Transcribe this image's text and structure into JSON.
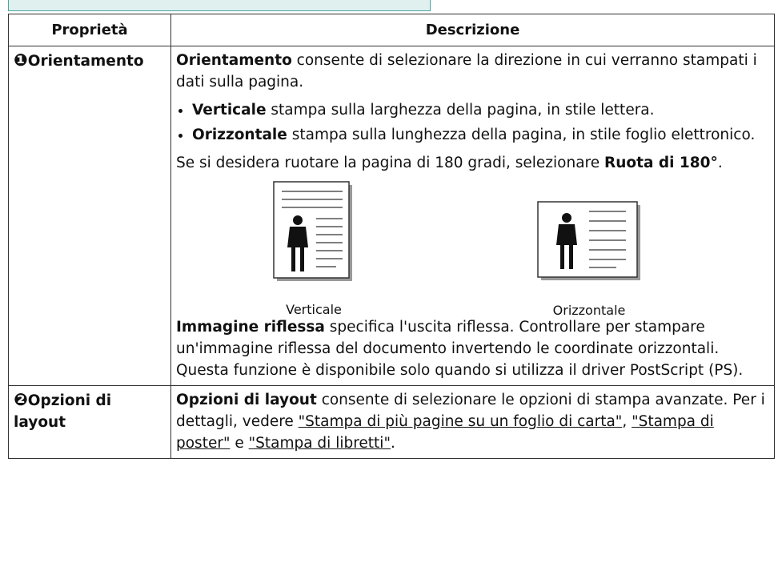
{
  "table": {
    "header": [
      "Proprietà",
      "Descrizione"
    ],
    "rows": [
      {
        "property": {
          "marker": "❶",
          "text": "Orientamento"
        },
        "description": [
          {
            "kind": "paragraph",
            "runs": [
              {
                "text": "Orientamento",
                "style": "bold"
              },
              {
                "text": " consente di selezionare la direzione in cui verranno stampati i dati sulla pagina."
              }
            ]
          },
          {
            "kind": "list",
            "items": [
              [
                {
                  "text": "Verticale",
                  "style": "bold"
                },
                {
                  "text": " stampa sulla larghezza della pagina, in stile lettera."
                }
              ],
              [
                {
                  "text": "Orizzontale",
                  "style": "bold"
                },
                {
                  "text": " stampa sulla lunghezza della pagina, in stile foglio elettronico."
                }
              ]
            ]
          },
          {
            "kind": "paragraph",
            "runs": [
              {
                "text": "Se si desidera ruotare la pagina di 180 gradi, selezionare "
              },
              {
                "text": "Ruota di 180°",
                "style": "bold"
              },
              {
                "text": "."
              }
            ]
          },
          {
            "kind": "figure",
            "captions": [
              "Verticale",
              "Orizzontale"
            ]
          },
          {
            "kind": "paragraph",
            "runs": [
              {
                "text": "Immagine riflessa",
                "style": "bold"
              },
              {
                "text": " specifica l'uscita riflessa. Controllare per stampare un'immagine riflessa del documento invertendo le coordinate orizzontali. Questa funzione è disponibile solo quando si utilizza il driver PostScript (PS)."
              }
            ]
          }
        ]
      },
      {
        "property": {
          "marker": "❷",
          "text": "Opzioni di layout"
        },
        "description": [
          {
            "kind": "paragraph",
            "runs": [
              {
                "text": "Opzioni di layout",
                "style": "bold"
              },
              {
                "text": " consente di selezionare le opzioni di stampa avanzate. Per i dettagli, vedere "
              },
              {
                "text": "\"Stampa di più pagine su un foglio di carta\"",
                "style": "link"
              },
              {
                "text": ", "
              },
              {
                "text": "\"Stampa di poster\"",
                "style": "link"
              },
              {
                "text": " e "
              },
              {
                "text": "\"Stampa di libretti\"",
                "style": "link"
              },
              {
                "text": "."
              }
            ]
          }
        ]
      }
    ]
  }
}
